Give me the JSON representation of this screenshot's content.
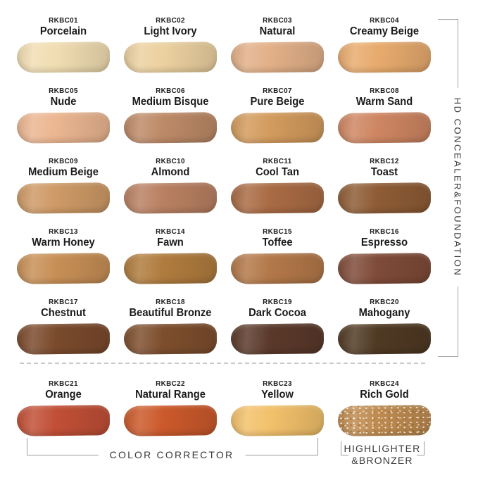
{
  "groups": {
    "side": {
      "label": "HD CONCEALER&FOUNDATION"
    },
    "bottom_left": {
      "label": "COLOR CORRECTOR"
    },
    "bottom_right": {
      "line1": "HIGHLIGHTER",
      "line2": "&BRONZER"
    }
  },
  "colors": {
    "bracket_line": "#9b9b9b",
    "dashed_divider": "#c9c9c9",
    "label_text": "#1b1b1b",
    "caption_text": "#3a3a3a"
  },
  "swatches": [
    {
      "code": "RKBC01",
      "name": "Porcelain",
      "color": "#F1DDB2"
    },
    {
      "code": "RKBC02",
      "name": "Light Ivory",
      "color": "#ECD1A0"
    },
    {
      "code": "RKBC03",
      "name": "Natural",
      "color": "#E2B088"
    },
    {
      "code": "RKBC04",
      "name": "Creamy Beige",
      "color": "#E8AB6E"
    },
    {
      "code": "RKBC05",
      "name": "Nude",
      "color": "#EBB691"
    },
    {
      "code": "RKBC06",
      "name": "Medium Bisque",
      "color": "#BD8A67"
    },
    {
      "code": "RKBC07",
      "name": "Pure Beige",
      "color": "#D39B5D"
    },
    {
      "code": "RKBC08",
      "name": "Warm Sand",
      "color": "#CE8662"
    },
    {
      "code": "RKBC09",
      "name": "Medium Beige",
      "color": "#CE9A66"
    },
    {
      "code": "RKBC10",
      "name": "Almond",
      "color": "#B98062"
    },
    {
      "code": "RKBC11",
      "name": "Cool Tan",
      "color": "#A96B44"
    },
    {
      "code": "RKBC12",
      "name": "Toast",
      "color": "#8E5C35"
    },
    {
      "code": "RKBC13",
      "name": "Warm Honey",
      "color": "#C78F56"
    },
    {
      "code": "RKBC14",
      "name": "Fawn",
      "color": "#B07C3E"
    },
    {
      "code": "RKBC15",
      "name": "Toffee",
      "color": "#B37849"
    },
    {
      "code": "RKBC16",
      "name": "Espresso",
      "color": "#7F4B38"
    },
    {
      "code": "RKBC17",
      "name": "Chestnut",
      "color": "#7A4A2C"
    },
    {
      "code": "RKBC18",
      "name": "Beautiful Bronze",
      "color": "#7D4E2D"
    },
    {
      "code": "RKBC19",
      "name": "Dark Cocoa",
      "color": "#5A392A"
    },
    {
      "code": "RKBC20",
      "name": "Mahogany",
      "color": "#4F3923"
    },
    {
      "code": "RKBC21",
      "name": "Orange",
      "color": "#C14F36"
    },
    {
      "code": "RKBC22",
      "name": "Natural Range",
      "color": "#CB592B"
    },
    {
      "code": "RKBC23",
      "name": "Yellow",
      "color": "#F2C16B"
    },
    {
      "code": "RKBC24",
      "name": "Rich Gold",
      "color": "#BE8B50"
    }
  ]
}
